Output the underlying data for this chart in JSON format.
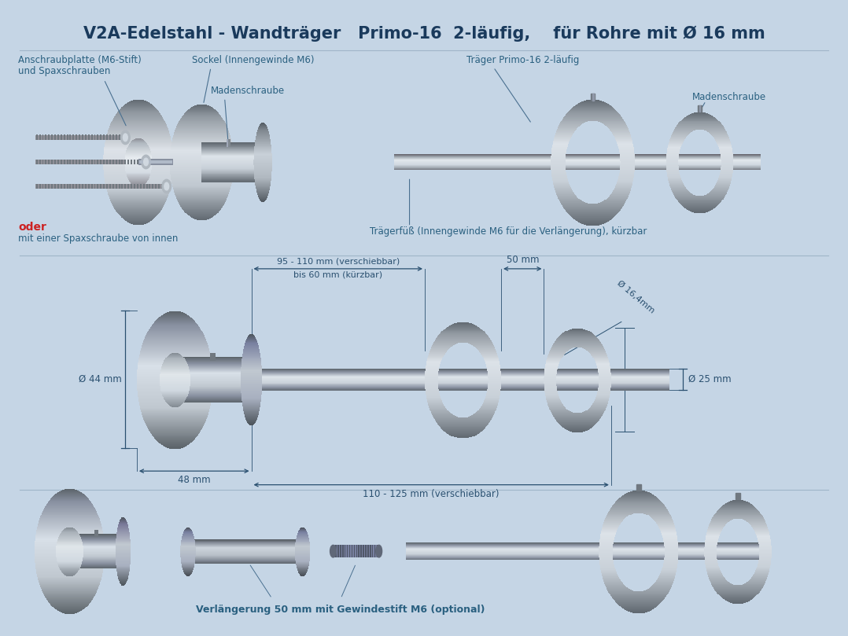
{
  "title": "V2A-Edelstahl - Wandträger   Primo-16  2-läufig,    für Rohre mit Ø 16 mm",
  "background_color": "#c5d5e5",
  "title_color": "#1a3a5c",
  "label_color": "#2a6080",
  "annotation_color": "#4a7090",
  "red_color": "#cc2222",
  "dim_color": "#2a5070",
  "metal_dark": "#787880",
  "metal_mid": "#a8b0b8",
  "metal_light": "#d8dde2",
  "metal_shine": "#e8ecf0",
  "labels_top_left": {
    "label1": "Anschraubplatte (M6-Stift)",
    "label1b": "und Spaxschrauben",
    "label2": "Sockel (Innengewinde M6)",
    "label3": "Madenschraube",
    "label4": "oder",
    "label5": "mit einer Spaxschraube von innen"
  },
  "labels_top_right": {
    "label1": "Träger Primo-16 2-läufig",
    "label2": "Madenschraube",
    "label3": "Trägerfüß (Innengewinde M6 für die Verlängerung), kürzbar"
  },
  "labels_middle": {
    "dim1": "95 - 110 mm (verschiebbar)",
    "dim2": "bis 60 mm (kürzbar)",
    "dim3": "50 mm",
    "dim4": "Ø 16,4mm",
    "dim5": "Ø 44 mm",
    "dim6": "Ø 25 mm",
    "dim7": "48 mm",
    "dim8": "110 - 125 mm (verschiebbar)"
  },
  "labels_bottom": {
    "caption": "Verlängerung 50 mm mit Gewindestift M6 (optional)"
  }
}
